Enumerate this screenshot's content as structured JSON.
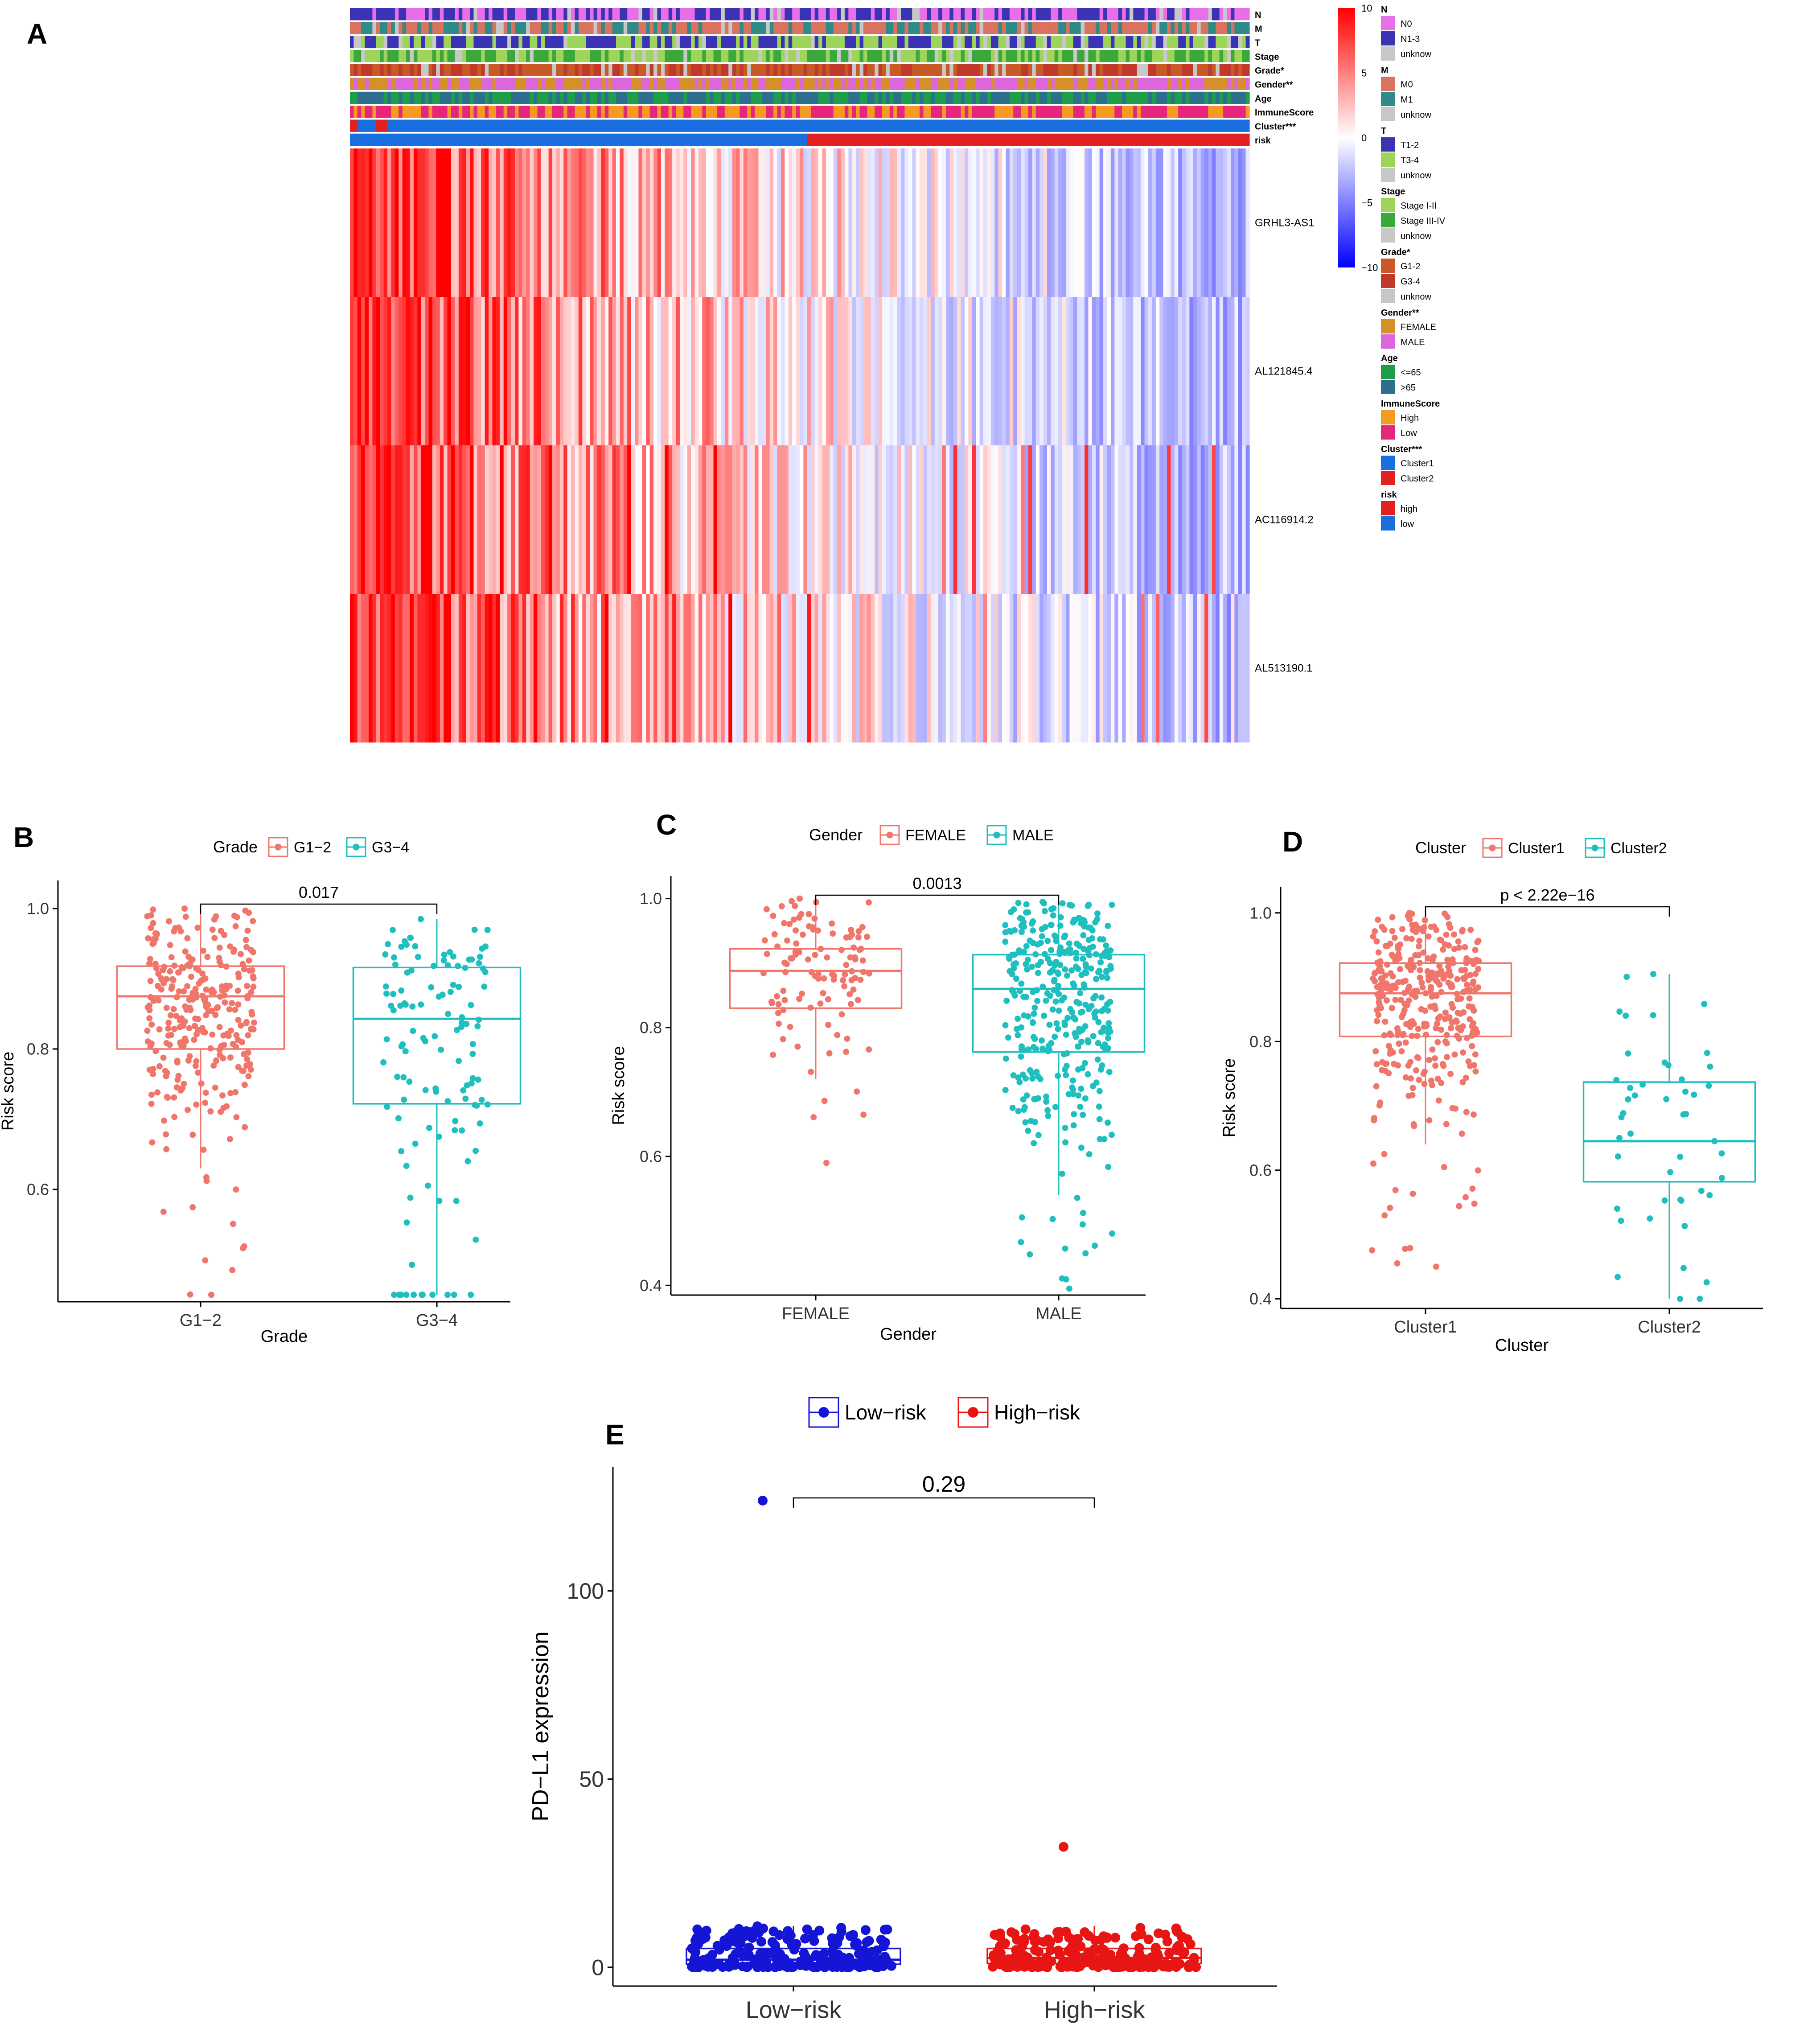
{
  "figure": {
    "panel_labels": [
      "A",
      "B",
      "C",
      "D",
      "E"
    ]
  },
  "chart_data": [
    {
      "panel": "A",
      "type": "heatmap",
      "title": "",
      "n_samples": 240,
      "genes": [
        "GRHL3-AS1",
        "AL121845.4",
        "AC116914.2",
        "AL513190.1"
      ],
      "annotation_tracks": [
        {
          "label": "N",
          "categories": [
            {
              "name": "N0",
              "color": "#e86fe8"
            },
            {
              "name": "N1-3",
              "color": "#3a34b4"
            },
            {
              "name": "unknow",
              "color": "#c8c8c8"
            }
          ]
        },
        {
          "label": "M",
          "categories": [
            {
              "name": "M0",
              "color": "#d9725f"
            },
            {
              "name": "M1",
              "color": "#2e8b87"
            },
            {
              "name": "unknow",
              "color": "#c8c8c8"
            }
          ]
        },
        {
          "label": "T",
          "categories": [
            {
              "name": "T1-2",
              "color": "#3a34b4"
            },
            {
              "name": "T3-4",
              "color": "#9fd45a"
            },
            {
              "name": "unknow",
              "color": "#c8c8c8"
            }
          ]
        },
        {
          "label": "Stage",
          "categories": [
            {
              "name": "Stage I-II",
              "color": "#9fd45a"
            },
            {
              "name": "Stage III-IV",
              "color": "#3aa83a"
            },
            {
              "name": "unknow",
              "color": "#c8c8c8"
            }
          ]
        },
        {
          "label": "Grade*",
          "categories": [
            {
              "name": "G1-2",
              "color": "#c85a28"
            },
            {
              "name": "G3-4",
              "color": "#c0392b"
            },
            {
              "name": "unknow",
              "color": "#c8c8c8"
            }
          ]
        },
        {
          "label": "Gender**",
          "categories": [
            {
              "name": "FEMALE",
              "color": "#d4912a"
            },
            {
              "name": "MALE",
              "color": "#dc66dc"
            }
          ]
        },
        {
          "label": "Age",
          "categories": [
            {
              "name": "<=65",
              "color": "#1f9e4a"
            },
            {
              "name": ">65",
              "color": "#2e6f8e"
            }
          ]
        },
        {
          "label": "ImmuneScore",
          "categories": [
            {
              "name": "High",
              "color": "#f59a23"
            },
            {
              "name": "Low",
              "color": "#e6267a"
            }
          ]
        },
        {
          "label": "Cluster***",
          "categories": [
            {
              "name": "Cluster1",
              "color": "#1a6fe0"
            },
            {
              "name": "Cluster2",
              "color": "#e32020"
            }
          ]
        },
        {
          "label": "risk",
          "categories": [
            {
              "name": "high",
              "color": "#e32020"
            },
            {
              "name": "low",
              "color": "#1a6fe0"
            }
          ]
        }
      ],
      "colorbar": {
        "ticks": [
          10,
          5,
          0,
          -5,
          -10
        ],
        "ticklabels": [
          "10",
          "5",
          "0",
          "−5",
          "−10"
        ],
        "range": [
          -10,
          10
        ],
        "high_color": "#ff0000",
        "mid_color": "#ffffff",
        "low_color": "#0000ff"
      }
    },
    {
      "panel": "B",
      "type": "box",
      "title": "",
      "legend_title": "Grade",
      "categories": [
        "G1−2",
        "G3−4"
      ],
      "colors": [
        "#f0766c",
        "#1fbfbf"
      ],
      "xlabel": "Grade",
      "ylabel": "Risk score",
      "ylim": [
        0.44,
        1.04
      ],
      "yticks": [
        0.6,
        0.8,
        1.0
      ],
      "yticklabels": [
        "0.6",
        "0.8",
        "1.0"
      ],
      "boxes": [
        {
          "q1": 0.8,
          "median": 0.875,
          "q3": 0.918,
          "whisker_low": 0.63,
          "whisker_high": 1.0,
          "n": 300,
          "min": 0.45,
          "max": 1.0
        },
        {
          "q1": 0.722,
          "median": 0.843,
          "q3": 0.916,
          "whisker_low": 0.45,
          "whisker_high": 0.985,
          "n": 120,
          "min": 0.45,
          "max": 0.985
        }
      ],
      "pvalue": "0.017"
    },
    {
      "panel": "C",
      "type": "box",
      "title": "",
      "legend_title": "Gender",
      "categories": [
        "FEMALE",
        "MALE"
      ],
      "colors": [
        "#f0766c",
        "#1fbfbf"
      ],
      "xlabel": "Gender",
      "ylabel": "Risk score",
      "ylim": [
        0.385,
        1.035
      ],
      "yticks": [
        0.4,
        0.6,
        0.8,
        1.0
      ],
      "yticklabels": [
        "0.4",
        "0.6",
        "0.8",
        "1.0"
      ],
      "boxes": [
        {
          "q1": 0.83,
          "median": 0.888,
          "q3": 0.922,
          "whisker_low": 0.72,
          "whisker_high": 1.0,
          "n": 110,
          "min": 0.59,
          "max": 1.0
        },
        {
          "q1": 0.762,
          "median": 0.86,
          "q3": 0.913,
          "whisker_low": 0.54,
          "whisker_high": 0.995,
          "n": 360,
          "min": 0.395,
          "max": 0.995
        }
      ],
      "pvalue": "0.0013"
    },
    {
      "panel": "D",
      "type": "box",
      "title": "",
      "legend_title": "Cluster",
      "categories": [
        "Cluster1",
        "Cluster2"
      ],
      "colors": [
        "#f0766c",
        "#1fbfbf"
      ],
      "xlabel": "Cluster",
      "ylabel": "Risk score",
      "ylim": [
        0.385,
        1.04
      ],
      "yticks": [
        0.4,
        0.6,
        0.8,
        1.0
      ],
      "yticklabels": [
        "0.4",
        "0.6",
        "0.8",
        "1.0"
      ],
      "boxes": [
        {
          "q1": 0.808,
          "median": 0.875,
          "q3": 0.922,
          "whisker_low": 0.64,
          "whisker_high": 1.0,
          "n": 360,
          "min": 0.45,
          "max": 1.0
        },
        {
          "q1": 0.582,
          "median": 0.645,
          "q3": 0.737,
          "whisker_low": 0.4,
          "whisker_high": 0.905,
          "n": 45,
          "min": 0.4,
          "max": 0.905
        }
      ],
      "pvalue": "p < 2.22e−16"
    },
    {
      "panel": "E",
      "type": "box",
      "title": "",
      "legend_title": "",
      "categories": [
        "Low−risk",
        "High−risk"
      ],
      "colors": [
        "#1515d6",
        "#e81515"
      ],
      "xlabel": "",
      "ylabel": "PD−L1 expression",
      "ylim": [
        -5,
        133
      ],
      "yticks": [
        0,
        50,
        100
      ],
      "yticklabels": [
        "0",
        "50",
        "100"
      ],
      "boxes": [
        {
          "q1": 0.8,
          "median": 2.0,
          "q3": 5.0,
          "whisker_low": 0,
          "whisker_high": 11,
          "n": 220,
          "min": 0,
          "max": 124
        },
        {
          "q1": 1.0,
          "median": 2.5,
          "q3": 5.0,
          "whisker_low": 0,
          "whisker_high": 11,
          "n": 220,
          "min": 0,
          "max": 32
        }
      ],
      "pvalue": "0.29"
    }
  ]
}
